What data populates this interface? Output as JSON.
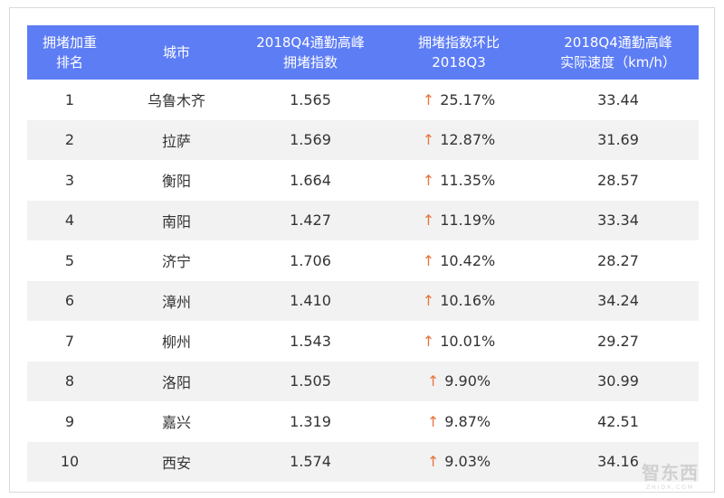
{
  "colors": {
    "header_bg": "#5d7df5",
    "stripe": "#f2f2f2",
    "arrow": "#e8743b"
  },
  "icons": {
    "rise": "up-arrow-icon"
  },
  "table": {
    "headers": [
      "拥堵加重\n排名",
      "城市",
      "2018Q4通勤高峰\n拥堵指数",
      "拥堵指数环比\n2018Q3",
      "2018Q4通勤高峰\n实际速度（km/h）"
    ],
    "rows": [
      {
        "rank": "1",
        "city": "乌鲁木齐",
        "index": "1.565",
        "change": "25.17%",
        "speed": "33.44"
      },
      {
        "rank": "2",
        "city": "拉萨",
        "index": "1.569",
        "change": "12.87%",
        "speed": "31.69"
      },
      {
        "rank": "3",
        "city": "衡阳",
        "index": "1.664",
        "change": "11.35%",
        "speed": "28.57"
      },
      {
        "rank": "4",
        "city": "南阳",
        "index": "1.427",
        "change": "11.19%",
        "speed": "33.34"
      },
      {
        "rank": "5",
        "city": "济宁",
        "index": "1.706",
        "change": "10.42%",
        "speed": "28.27"
      },
      {
        "rank": "6",
        "city": "漳州",
        "index": "1.410",
        "change": "10.16%",
        "speed": "34.24"
      },
      {
        "rank": "7",
        "city": "柳州",
        "index": "1.543",
        "change": "10.01%",
        "speed": "29.27"
      },
      {
        "rank": "8",
        "city": "洛阳",
        "index": "1.505",
        "change": "9.90%",
        "speed": "30.99"
      },
      {
        "rank": "9",
        "city": "嘉兴",
        "index": "1.319",
        "change": "9.87%",
        "speed": "42.51"
      },
      {
        "rank": "10",
        "city": "西安",
        "index": "1.574",
        "change": "9.03%",
        "speed": "34.16"
      }
    ]
  },
  "watermark": {
    "main": "智东西",
    "sub": "ZHIDX.COM"
  }
}
